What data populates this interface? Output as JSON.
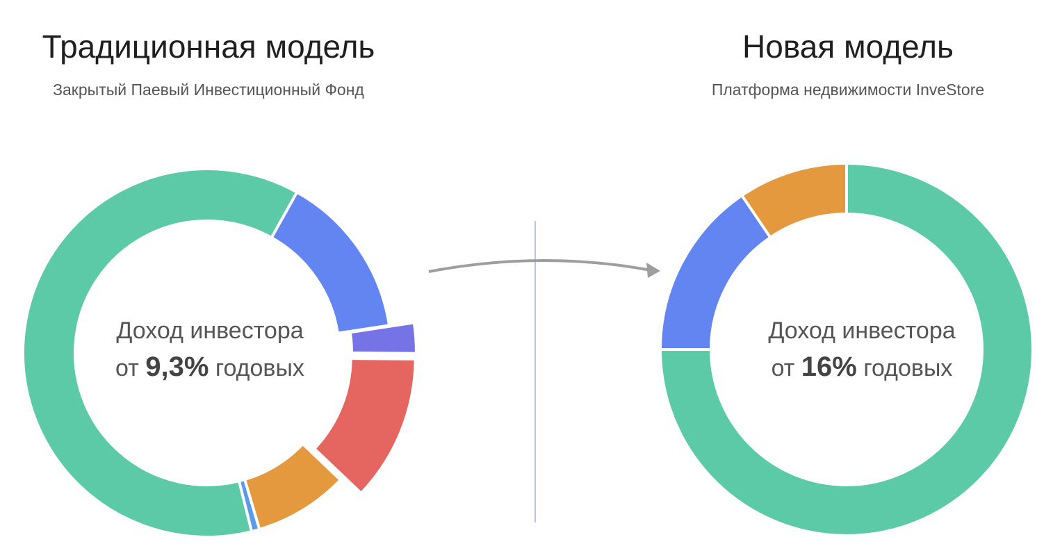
{
  "left": {
    "title": "Традиционная модель",
    "subtitle": "Закрытый Паевый Инвестиционный Фонд",
    "center_line1": "Доход инвестора",
    "center_prefix": "от",
    "center_value": "9,3%",
    "center_suffix": "годовых"
  },
  "right": {
    "title": "Новая модель",
    "subtitle": "Платформа недвижимости InveStore",
    "center_line1": "Доход инвестора",
    "center_prefix": "от",
    "center_value": "16%",
    "center_suffix": "годовых"
  },
  "colors": {
    "green": "#5cc9a7",
    "blue": "#6385f1",
    "purple": "#7673e6",
    "red": "#e56561",
    "orange": "#e5993f",
    "lightblue": "#5a9ae8",
    "arrow": "#9e9e9e",
    "divider": "#9fb3d9"
  },
  "chart_data": [
    {
      "type": "pie",
      "slices": [
        {
          "color": "green",
          "value": 62.0
        },
        {
          "color": "blue",
          "value": 14.5
        },
        {
          "color": "purple",
          "value": 2.5,
          "exploded": true
        },
        {
          "color": "red",
          "value": 12.0,
          "exploded": true
        },
        {
          "color": "orange",
          "value": 8.3
        },
        {
          "color": "lightblue",
          "value": 0.7
        }
      ]
    },
    {
      "type": "pie",
      "slices": [
        {
          "color": "green",
          "value": 75.0
        },
        {
          "color": "blue",
          "value": 15.5
        },
        {
          "color": "orange",
          "value": 9.5
        }
      ]
    }
  ]
}
